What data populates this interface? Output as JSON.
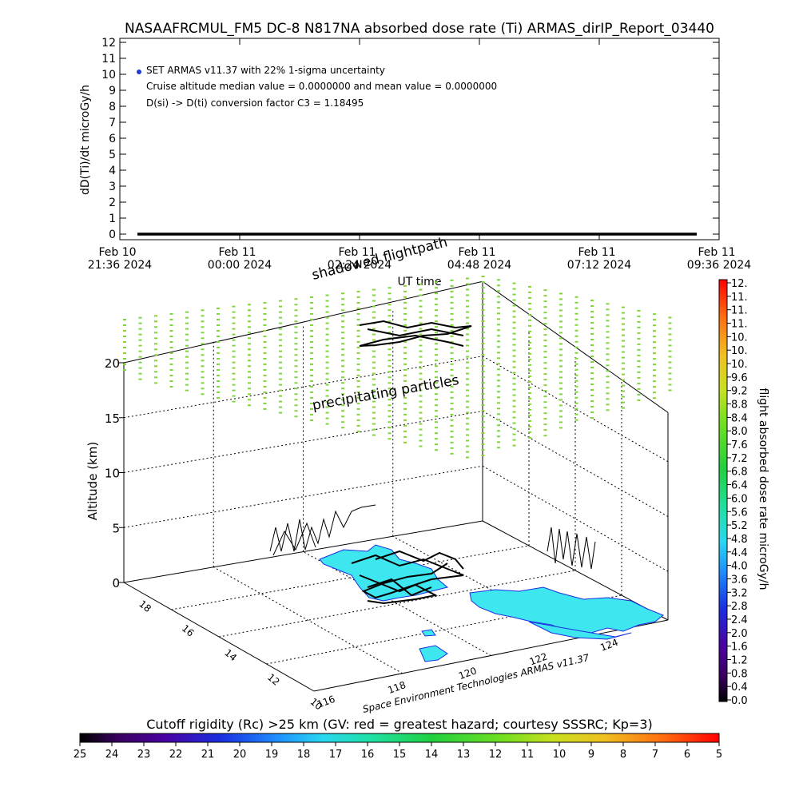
{
  "header": {
    "title": "NASAAFRCMUL_FM5 DC-8   N817NA absorbed dose rate (Ti) ARMAS_dirIP_Report_03440"
  },
  "top_plot": {
    "legend_lines": [
      "SET ARMAS v11.37 with 22% 1-sigma uncertainty",
      "Cruise altitude median value = 0.0000000 and mean value = 0.0000000",
      "D(si) -> D(ti) conversion factor C3 = 1.18495"
    ],
    "legend_marker_color": "#1f3bd6"
  },
  "chart_data": [
    {
      "type": "line",
      "title": "NASAAFRCMUL_FM5 DC-8   N817NA absorbed dose rate (Ti) ARMAS_dirIP_Report_03440",
      "xlabel": "UT time",
      "ylabel": "dD(Ti)/dt microGy/h",
      "ylim": [
        0,
        12
      ],
      "yticks": [
        "0",
        "1",
        "2",
        "3",
        "4",
        "5",
        "6",
        "7",
        "8",
        "9",
        "10",
        "11",
        "12"
      ],
      "xticks": [
        {
          "line1": "Feb 10",
          "line2": "21:36 2024"
        },
        {
          "line1": "Feb 11",
          "line2": "00:00 2024"
        },
        {
          "line1": "Feb 11",
          "line2": "02:24 2024"
        },
        {
          "line1": "Feb 11",
          "line2": "04:48 2024"
        },
        {
          "line1": "Feb 11",
          "line2": "07:12 2024"
        },
        {
          "line1": "Feb 11",
          "line2": "09:36 2024"
        }
      ],
      "xlim": [
        "2024-02-10 21:36",
        "2024-02-11 09:36"
      ],
      "series": [
        {
          "x_start": "2024-02-10 21:36",
          "x_end": "2024-02-11 09:36",
          "value": 0.0,
          "color": "#000000"
        }
      ],
      "grid": false
    },
    {
      "type": "scatter",
      "zlabel": "Altitude (km)",
      "zticks": [
        "0",
        "5",
        "10",
        "15",
        "20"
      ],
      "zlim": [
        0,
        22
      ],
      "lat_ticks": [
        "10",
        "12",
        "14",
        "16",
        "18"
      ],
      "lon_ticks": [
        "116",
        "118",
        "120",
        "122",
        "124"
      ],
      "annotations": [
        "shadowed flightpath",
        "precipitating particles",
        "Space Environment Technologies ARMAS v11.37"
      ],
      "precipitating_color": "#7fd63a",
      "land_color": "#3ee6f0",
      "grid": true
    }
  ],
  "right_colorbar": {
    "label": "flight absorbed dose rate microGy/h",
    "ticks": [
      "12.",
      "11.",
      "11.",
      "11.",
      "10.",
      "10.",
      "10.",
      "9.6",
      "9.2",
      "8.8",
      "8.4",
      "8.0",
      "7.6",
      "7.2",
      "6.8",
      "6.4",
      "6.0",
      "5.6",
      "5.2",
      "4.8",
      "4.4",
      "4.0",
      "3.6",
      "3.2",
      "2.8",
      "2.4",
      "2.0",
      "1.6",
      "1.2",
      "0.8",
      "0.4",
      "0.0"
    ]
  },
  "bottom_colorbar": {
    "label": "Cutoff rigidity (Rc) >25 km (GV: red = greatest hazard; courtesy SSSRC; Kp=3)",
    "ticks": [
      "25",
      "24",
      "23",
      "22",
      "21",
      "20",
      "19",
      "18",
      "17",
      "16",
      "15",
      "14",
      "13",
      "12",
      "11",
      "10",
      "9",
      "8",
      "7",
      "6",
      "5"
    ]
  }
}
